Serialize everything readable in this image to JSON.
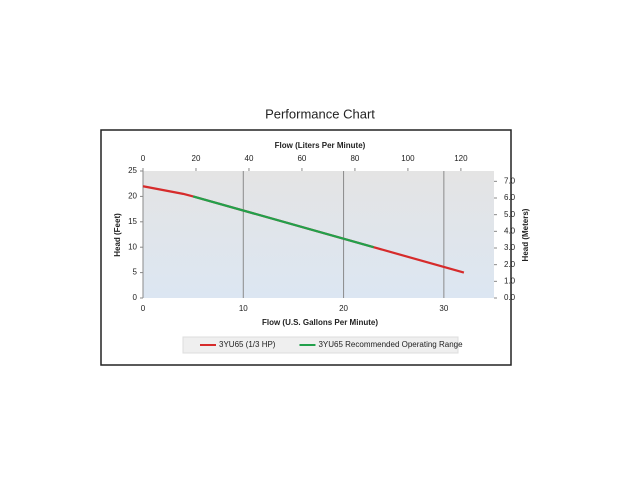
{
  "chart_data": {
    "type": "line",
    "title": "Performance Chart",
    "xlabel": "Flow (U.S. Gallons Per Minute)",
    "x2label": "Flow (Liters Per Minute)",
    "ylabel": "Head (Feet)",
    "y2label": "Head (Meters)",
    "x": [
      0,
      4,
      5,
      23,
      32
    ],
    "series": [
      {
        "name": "3YU65 (1/3 HP)",
        "color": "#d62b2b",
        "values": [
          22,
          20.5,
          20,
          10,
          5
        ]
      },
      {
        "name": "3YU65 Recommended Operating Range",
        "color": "#22a04b",
        "values": [
          null,
          null,
          20,
          10,
          null
        ]
      }
    ],
    "xlim": [
      0,
      35
    ],
    "xticks": [
      0,
      10,
      20,
      30
    ],
    "x2lim": [
      0,
      132.5
    ],
    "x2ticks": [
      0,
      20,
      40,
      60,
      80,
      100,
      120
    ],
    "ylim": [
      0,
      25
    ],
    "yticks": [
      0,
      5,
      10,
      15,
      20,
      25
    ],
    "y2lim": [
      0,
      7.62
    ],
    "y2ticks": [
      {
        "value": 0,
        "label": "0.0"
      },
      {
        "value": 1,
        "label": "1.0"
      },
      {
        "value": 2,
        "label": "2.0"
      },
      {
        "value": 3,
        "label": "3.0"
      },
      {
        "value": 4,
        "label": "4.0"
      },
      {
        "value": 5,
        "label": "5.0"
      },
      {
        "value": 6,
        "label": "6.0"
      },
      {
        "value": 7,
        "label": "7.0"
      }
    ],
    "grid": "x",
    "legend": "bottom"
  }
}
